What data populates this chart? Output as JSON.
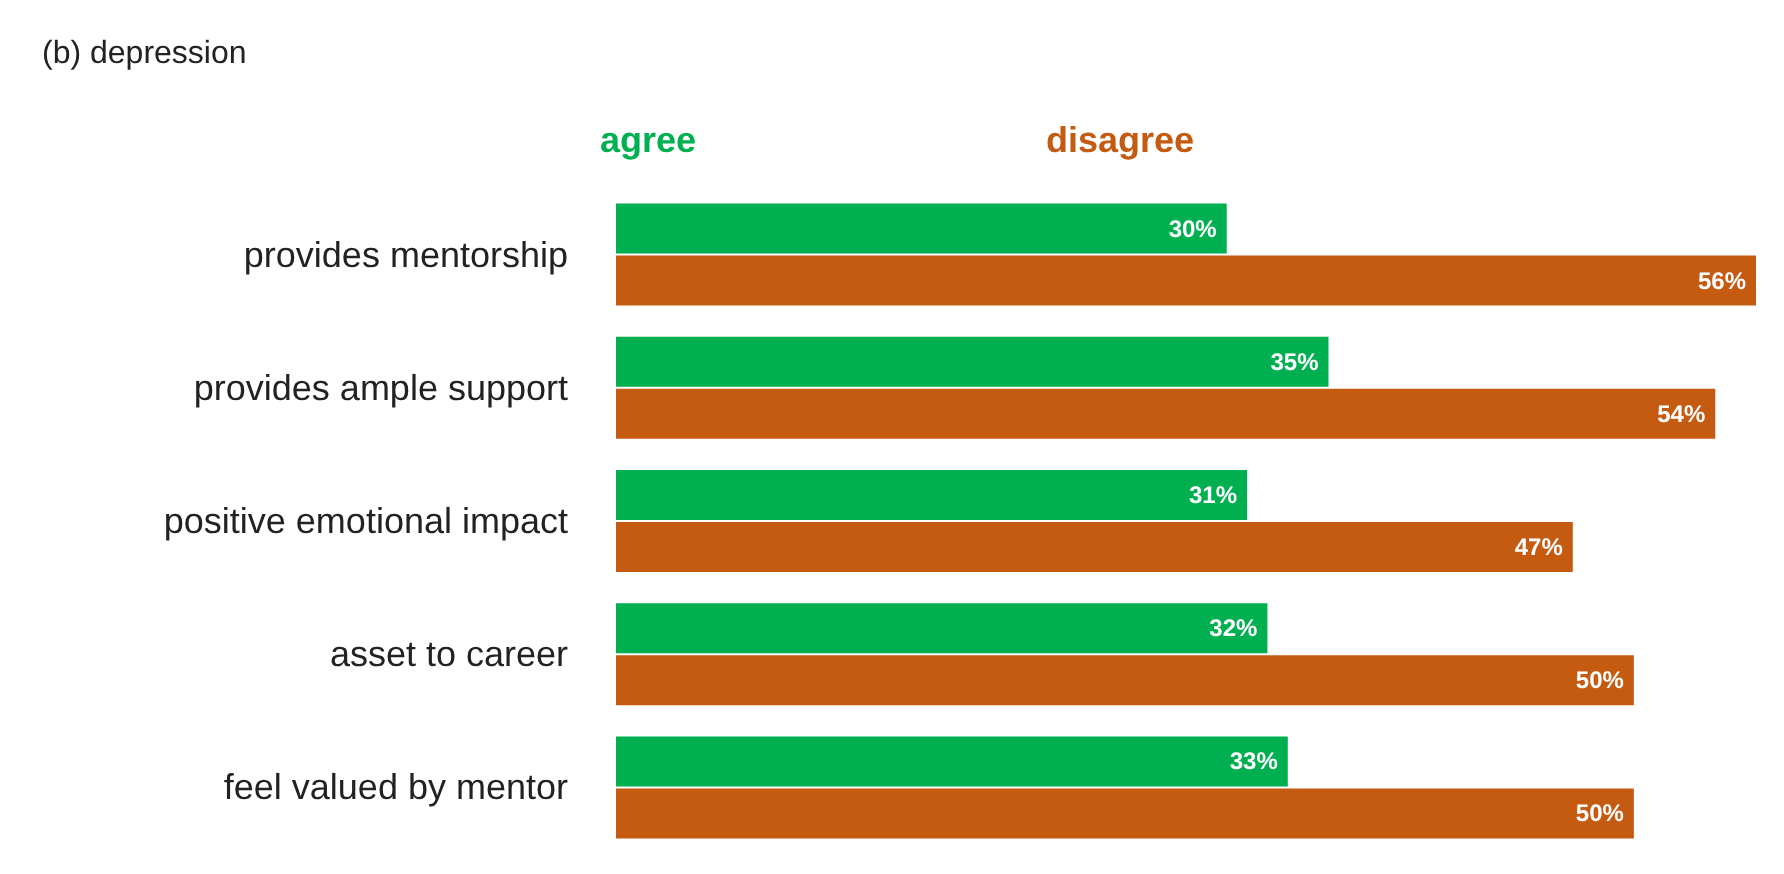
{
  "chart_data": {
    "type": "bar",
    "orientation": "horizontal",
    "title": "(b) depression",
    "categories": [
      "provides mentorship",
      "provides ample support",
      "positive emotional impact",
      "asset to career",
      "feel valued by mentor"
    ],
    "series": [
      {
        "name": "agree",
        "color": "#00b050",
        "values": [
          30,
          35,
          31,
          32,
          33
        ],
        "value_labels": [
          "30%",
          "35%",
          "31%",
          "32%",
          "33%"
        ]
      },
      {
        "name": "disagree",
        "color": "#c55a11",
        "values": [
          56,
          54,
          47,
          50,
          50
        ],
        "value_labels": [
          "56%",
          "54%",
          "47%",
          "50%",
          "50%"
        ]
      }
    ],
    "legend": "top"
  }
}
